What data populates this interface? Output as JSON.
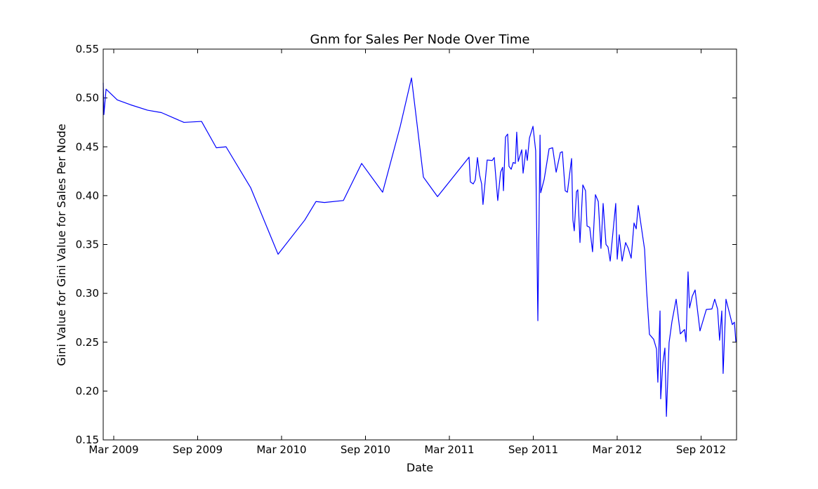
{
  "chart_data": {
    "type": "line",
    "title": "Gnm for Sales Per Node Over Time",
    "xlabel": "Date",
    "ylabel": "Gini Value for Gini Value for Sales Per Node",
    "color": "#0000ff",
    "x": [
      2009.104,
      2009.108,
      2009.121,
      2009.188,
      2009.267,
      2009.368,
      2009.451,
      2009.585,
      2009.69,
      2009.778,
      2009.836,
      2009.983,
      2010.146,
      2010.305,
      2010.372,
      2010.422,
      2010.535,
      2010.644,
      2010.769,
      2010.874,
      2010.941,
      2011.012,
      2011.096,
      2011.284,
      2011.292,
      2011.309,
      2011.321,
      2011.334,
      2011.347,
      2011.359,
      2011.367,
      2011.392,
      2011.422,
      2011.434,
      2011.455,
      2011.472,
      2011.484,
      2011.489,
      2011.501,
      2011.514,
      2011.522,
      2011.535,
      2011.547,
      2011.56,
      2011.568,
      2011.577,
      2011.598,
      2011.606,
      2011.623,
      2011.631,
      2011.644,
      2011.665,
      2011.681,
      2011.694,
      2011.707,
      2011.711,
      2011.732,
      2011.761,
      2011.782,
      2011.803,
      2011.828,
      2011.84,
      2011.857,
      2011.87,
      2011.895,
      2011.903,
      2011.911,
      2011.924,
      2011.932,
      2011.945,
      2011.962,
      2011.978,
      2011.987,
      2012.003,
      2012.02,
      2012.037,
      2012.054,
      2012.07,
      2012.083,
      2012.1,
      2012.112,
      2012.125,
      2012.158,
      2012.167,
      2012.179,
      2012.196,
      2012.217,
      2012.233,
      2012.25,
      2012.267,
      2012.28,
      2012.292,
      2012.33,
      2012.342,
      2012.359,
      2012.384,
      2012.401,
      2012.409,
      2012.422,
      2012.426,
      2012.439,
      2012.451,
      2012.46,
      2012.476,
      2012.493,
      2012.518,
      2012.543,
      2012.568,
      2012.577,
      2012.589,
      2012.598,
      2012.614,
      2012.631,
      2012.66,
      2012.698,
      2012.731,
      2012.748,
      2012.765,
      2012.777,
      2012.79,
      2012.798,
      2012.815,
      2012.853,
      2012.865,
      2012.874
    ],
    "values": [
      0.5155,
      0.483,
      0.509,
      0.498,
      0.493,
      0.4875,
      0.485,
      0.475,
      0.476,
      0.449,
      0.45,
      0.408,
      0.34,
      0.375,
      0.394,
      0.393,
      0.395,
      0.433,
      0.4035,
      0.471,
      0.5205,
      0.419,
      0.399,
      0.4394,
      0.414,
      0.412,
      0.416,
      0.439,
      0.421,
      0.412,
      0.391,
      0.4365,
      0.436,
      0.439,
      0.395,
      0.424,
      0.429,
      0.405,
      0.46,
      0.463,
      0.43,
      0.427,
      0.434,
      0.433,
      0.465,
      0.435,
      0.447,
      0.423,
      0.447,
      0.436,
      0.459,
      0.471,
      0.446,
      0.272,
      0.462,
      0.403,
      0.417,
      0.448,
      0.449,
      0.424,
      0.444,
      0.445,
      0.405,
      0.4035,
      0.438,
      0.375,
      0.364,
      0.404,
      0.406,
      0.352,
      0.411,
      0.405,
      0.369,
      0.3675,
      0.3425,
      0.401,
      0.394,
      0.346,
      0.392,
      0.35,
      0.3475,
      0.333,
      0.392,
      0.335,
      0.36,
      0.333,
      0.352,
      0.346,
      0.336,
      0.372,
      0.366,
      0.39,
      0.345,
      0.303,
      0.258,
      0.253,
      0.243,
      0.209,
      0.282,
      0.192,
      0.229,
      0.244,
      0.174,
      0.2495,
      0.271,
      0.294,
      0.2585,
      0.263,
      0.2505,
      0.322,
      0.285,
      0.297,
      0.3035,
      0.2615,
      0.2835,
      0.284,
      0.294,
      0.284,
      0.252,
      0.282,
      0.218,
      0.294,
      0.268,
      0.2705,
      0.2505
    ],
    "xlim": [
      2009.104,
      2012.878
    ],
    "xticks": [
      {
        "value": 2009.1667,
        "label": "Mar 2009"
      },
      {
        "value": 2009.6667,
        "label": "Sep 2009"
      },
      {
        "value": 2010.1667,
        "label": "Mar 2010"
      },
      {
        "value": 2010.6667,
        "label": "Sep 2010"
      },
      {
        "value": 2011.1667,
        "label": "Mar 2011"
      },
      {
        "value": 2011.6667,
        "label": "Sep 2011"
      },
      {
        "value": 2012.1667,
        "label": "Mar 2012"
      },
      {
        "value": 2012.6667,
        "label": "Sep 2012"
      }
    ],
    "ylim": [
      0.15,
      0.55
    ],
    "yticks": [
      0.15,
      {
        "value": 0.2,
        "label": "0.20"
      },
      0.25,
      {
        "value": 0.3,
        "label": "0.30"
      },
      0.35,
      {
        "value": 0.4,
        "label": "0.40"
      },
      0.45,
      {
        "value": 0.5,
        "label": "0.50"
      },
      0.55
    ]
  }
}
